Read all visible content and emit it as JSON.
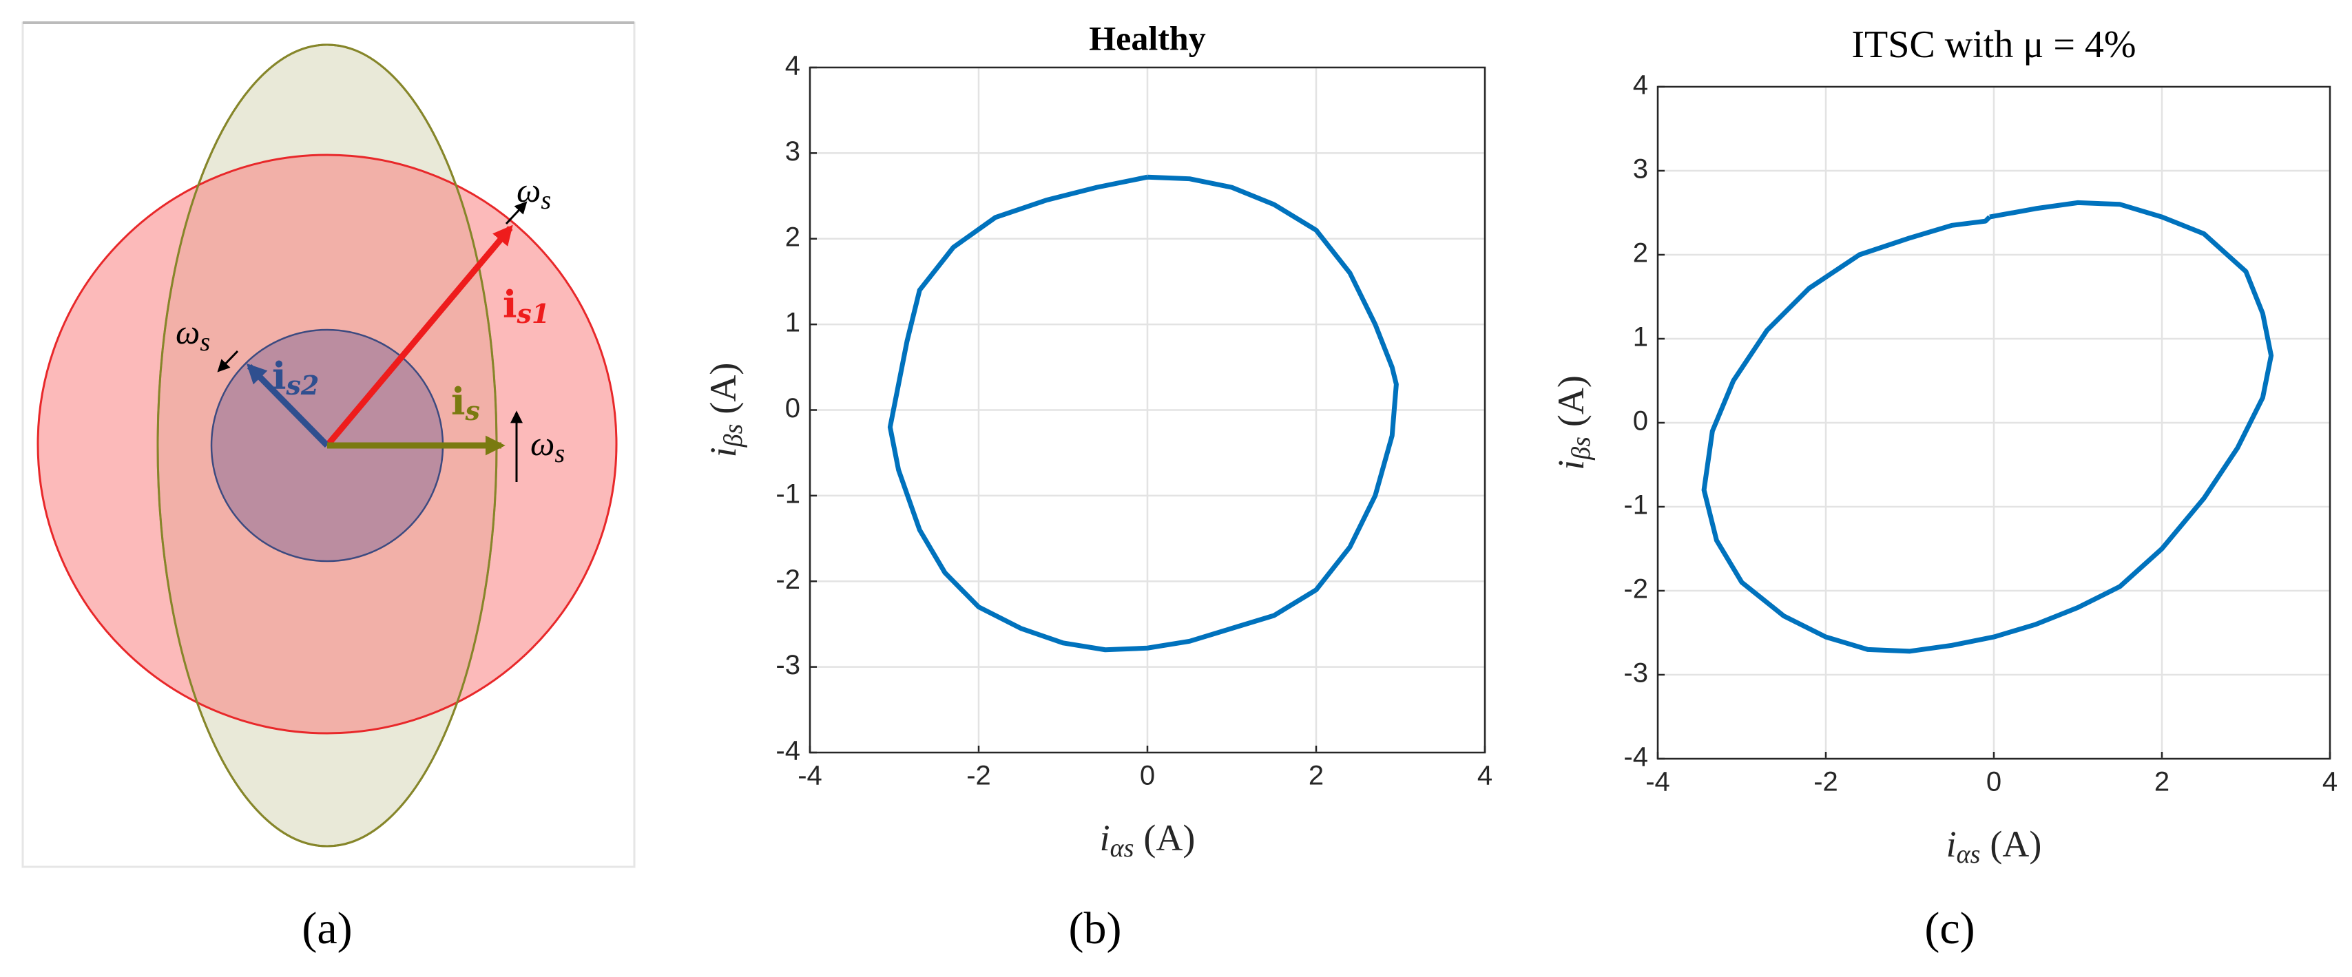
{
  "panel_labels": [
    "(a)",
    "(b)",
    "(c)"
  ],
  "diagram": {
    "vectors": [
      {
        "symbol": "i",
        "sub": "s1"
      },
      {
        "symbol": "i",
        "sub": "s2"
      },
      {
        "symbol": "i",
        "sub": "s"
      }
    ],
    "speed": {
      "symbol": "ω",
      "sub": "s"
    }
  },
  "chart_data": [
    {
      "type": "line",
      "title": "Healthy",
      "xlabel": {
        "symbol": "i",
        "sub": "αs",
        "unit": "(A)"
      },
      "ylabel": {
        "symbol": "i",
        "sub": "βs",
        "unit": "(A)"
      },
      "xlim": [
        -4,
        4
      ],
      "ylim": [
        -4,
        4
      ],
      "xticks": [
        -4,
        -2,
        0,
        2,
        4
      ],
      "yticks": [
        -4,
        -3,
        -2,
        -1,
        0,
        1,
        2,
        3,
        4
      ],
      "grid": true,
      "x": [
        0,
        0.5,
        1.0,
        1.5,
        2.0,
        2.4,
        2.7,
        2.9,
        2.95,
        2.9,
        2.7,
        2.4,
        2.0,
        1.5,
        1.0,
        0.5,
        0,
        -0.5,
        -1.0,
        -1.5,
        -2.0,
        -2.4,
        -2.7,
        -2.95,
        -3.05,
        -2.95,
        -2.85,
        -2.7,
        -2.3,
        -1.8,
        -1.2,
        -0.6,
        0
      ],
      "series": [
        {
          "color": "#0072bd",
          "values": [
            2.72,
            2.7,
            2.6,
            2.4,
            2.1,
            1.6,
            1.0,
            0.5,
            0.3,
            -0.3,
            -1.0,
            -1.6,
            -2.1,
            -2.4,
            -2.55,
            -2.7,
            -2.78,
            -2.8,
            -2.72,
            -2.55,
            -2.3,
            -1.9,
            -1.4,
            -0.7,
            -0.2,
            0.3,
            0.8,
            1.4,
            1.9,
            2.25,
            2.45,
            2.6,
            2.72
          ]
        }
      ]
    },
    {
      "type": "line",
      "title": "ITSC with μ = 4%",
      "xlabel": {
        "symbol": "i",
        "sub": "αs",
        "unit": "(A)"
      },
      "ylabel": {
        "symbol": "i",
        "sub": "βs",
        "unit": "(A)"
      },
      "xlim": [
        -4,
        4
      ],
      "ylim": [
        -4,
        4
      ],
      "xticks": [
        -4,
        -2,
        0,
        2,
        4
      ],
      "yticks": [
        -4,
        -3,
        -2,
        -1,
        0,
        1,
        2,
        3,
        4
      ],
      "grid": true,
      "x": [
        -0.05,
        0.5,
        1.0,
        1.5,
        2.0,
        2.5,
        3.0,
        3.2,
        3.3,
        3.2,
        2.9,
        2.5,
        2.0,
        1.5,
        1.0,
        0.5,
        0,
        -0.5,
        -1.0,
        -1.5,
        -2.0,
        -2.5,
        -3.0,
        -3.3,
        -3.45,
        -3.35,
        -3.1,
        -2.7,
        -2.2,
        -1.6,
        -1.0,
        -0.5,
        -0.1,
        -0.05
      ],
      "series": [
        {
          "color": "#0072bd",
          "values": [
            2.45,
            2.55,
            2.62,
            2.6,
            2.45,
            2.25,
            1.8,
            1.3,
            0.8,
            0.3,
            -0.3,
            -0.9,
            -1.5,
            -1.95,
            -2.2,
            -2.4,
            -2.55,
            -2.65,
            -2.72,
            -2.7,
            -2.55,
            -2.3,
            -1.9,
            -1.4,
            -0.8,
            -0.1,
            0.5,
            1.1,
            1.6,
            2.0,
            2.2,
            2.35,
            2.4,
            2.45
          ]
        }
      ]
    }
  ]
}
